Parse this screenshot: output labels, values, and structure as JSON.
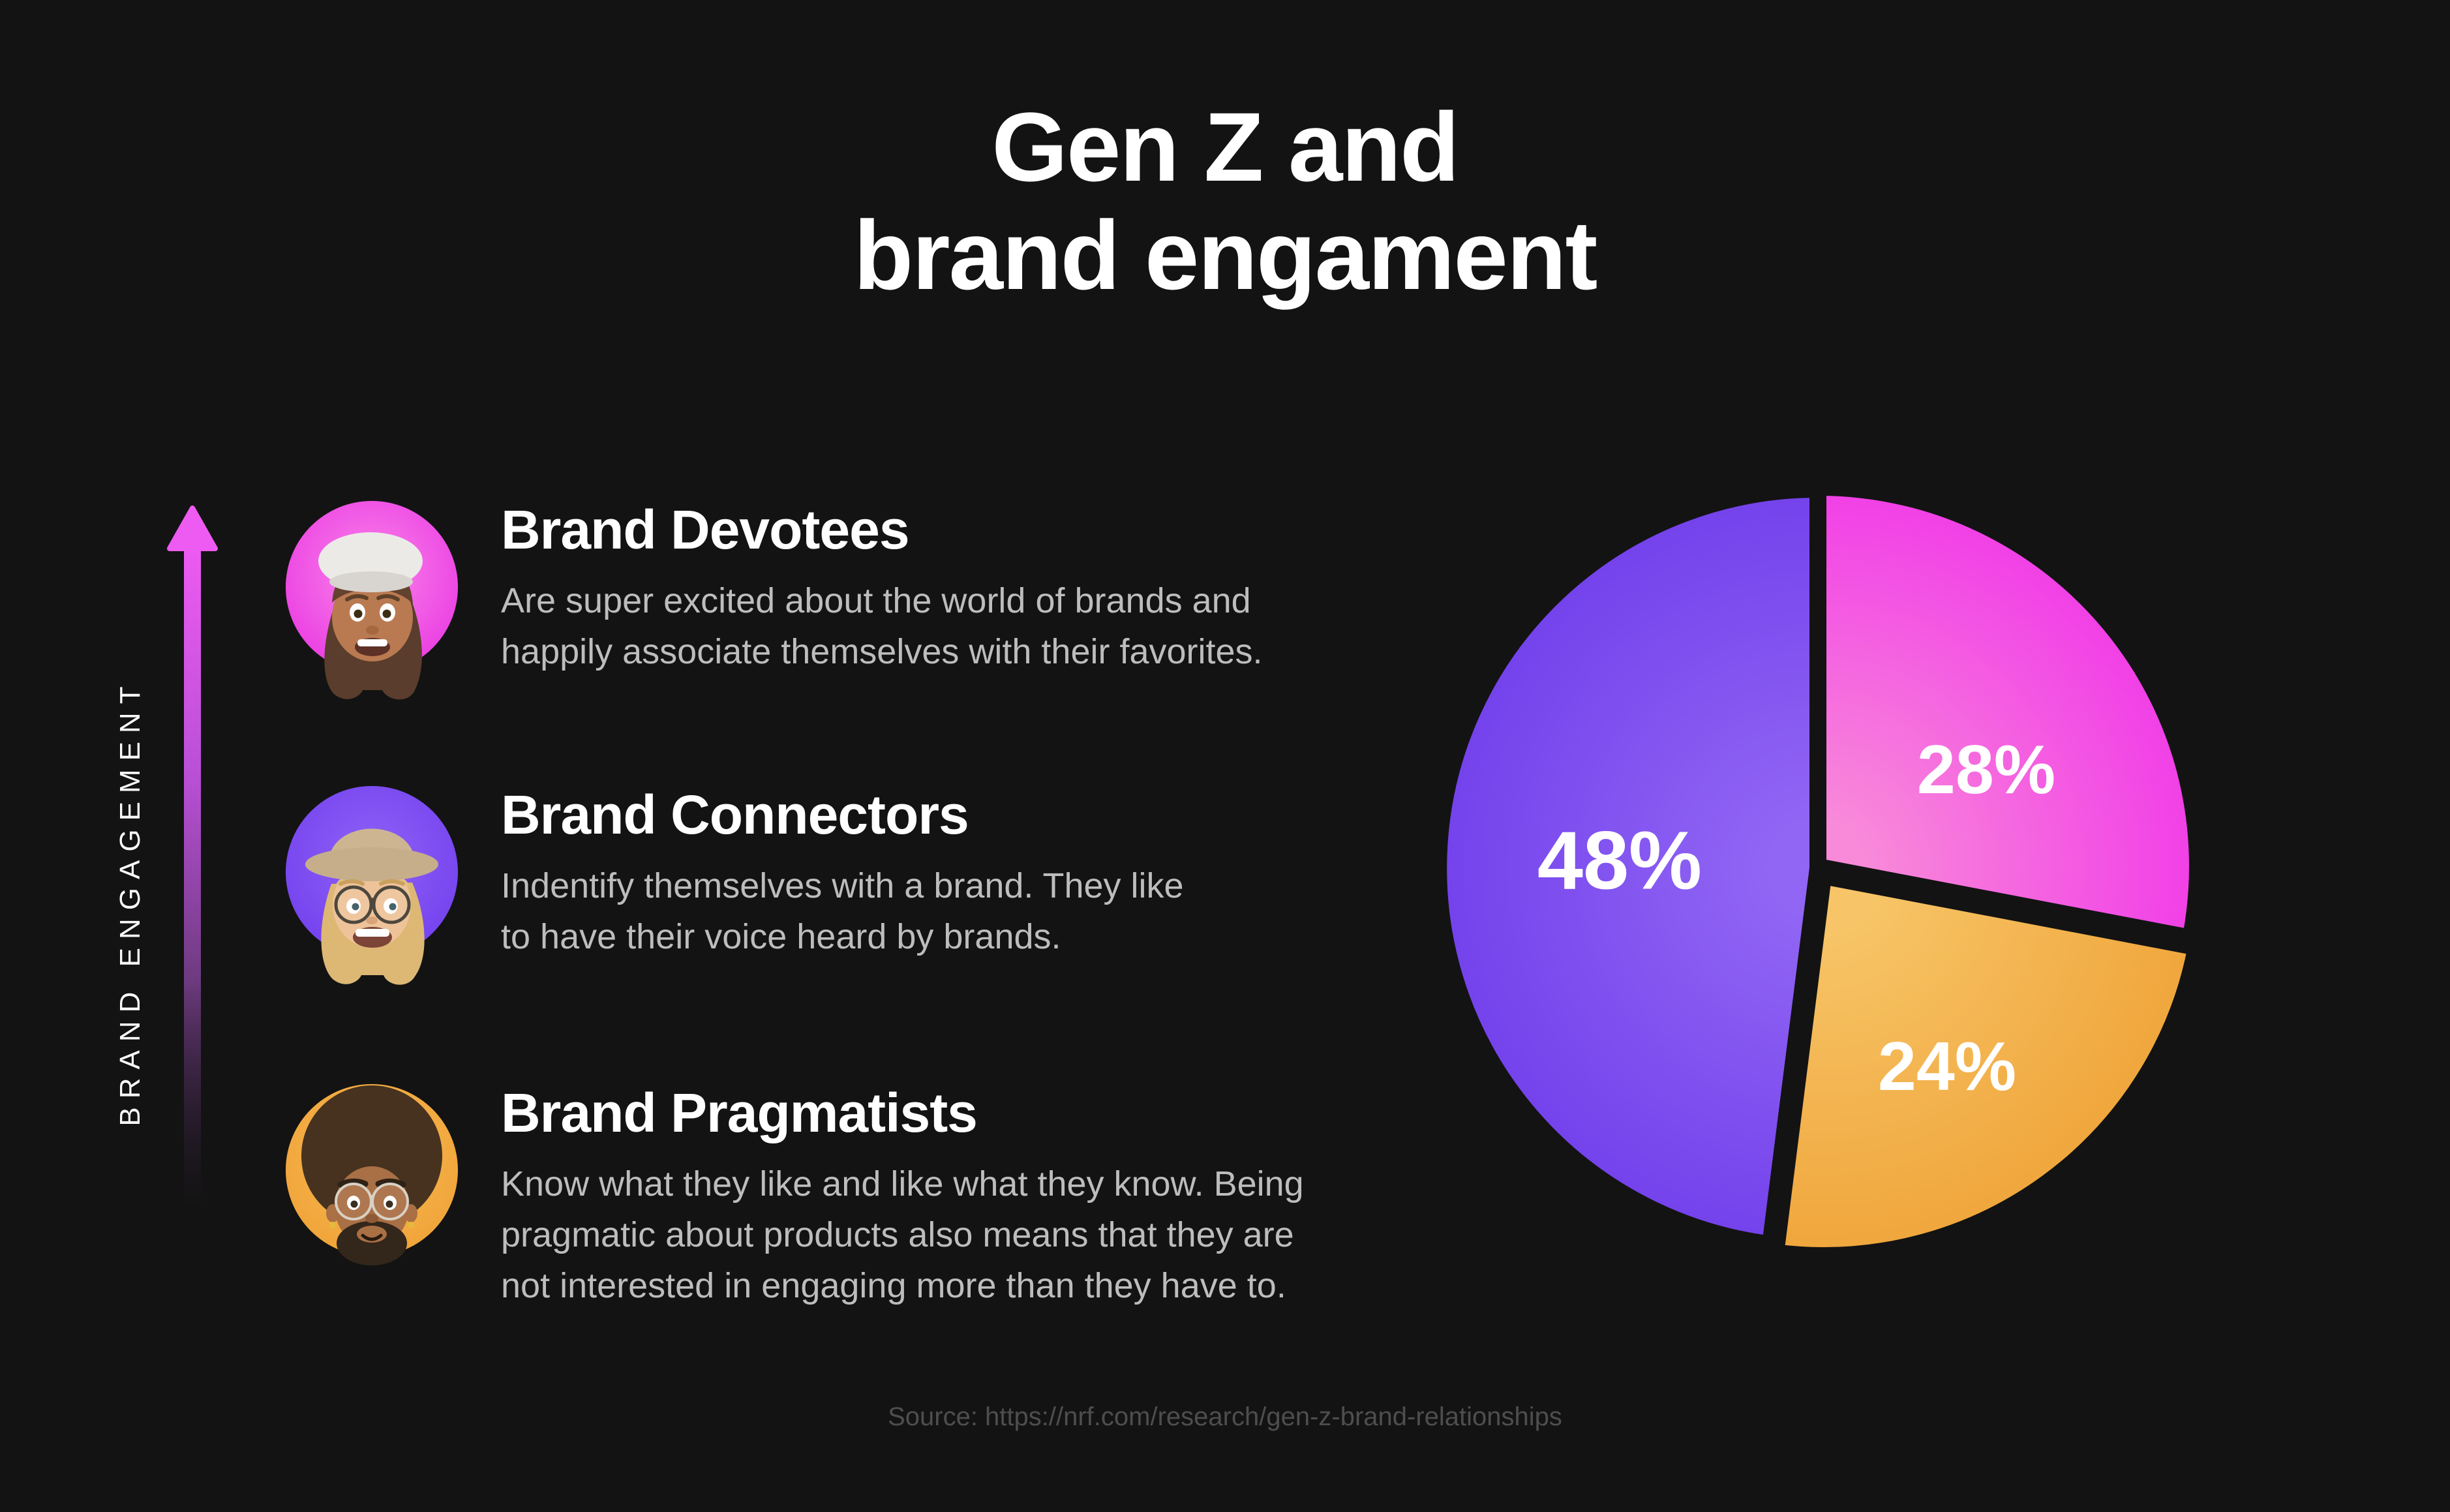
{
  "title": {
    "lines": [
      "Gen Z and",
      "brand engament"
    ]
  },
  "axis": {
    "label": "BRAND ENGAGEMENT"
  },
  "personas": [
    {
      "name": "Brand Devotees",
      "circle_color": "#ea3ce2",
      "avatar": "woman-beret-memoji",
      "description_lines": [
        "Are super excited about the world of brands and",
        "happily associate themselves with their favorites."
      ]
    },
    {
      "name": "Brand Connectors",
      "circle_color": "#7441ee",
      "avatar": "woman-ranger-hat-memoji",
      "description_lines": [
        "Indentify themselves with a brand. They like",
        "to have their voice heard by brands."
      ]
    },
    {
      "name": "Brand Pragmatists",
      "circle_color": "#f0a337",
      "avatar": "man-afro-glasses-memoji",
      "description_lines": [
        "Know what they like and like what they know. Being",
        "pragmatic about products also means that they are",
        "not interested in engaging more than they have to."
      ]
    }
  ],
  "chart_data": {
    "type": "pie",
    "start_angle_deg": 0,
    "direction": "clockwise",
    "title": "",
    "legend": "none",
    "segments": [
      {
        "label": "28%",
        "value": 28,
        "color_inner": "#f88ad9",
        "color_outer": "#f13fe7"
      },
      {
        "label": "24%",
        "value": 24,
        "color_inner": "#f7c568",
        "color_outer": "#f0a63c"
      },
      {
        "label": "48%",
        "value": 48,
        "color_inner": "#9166f4",
        "color_outer": "#7442ec"
      }
    ]
  },
  "colors": {
    "background": "#131313",
    "title_text": "#ffffff",
    "body_text": "#bdbdbd",
    "source_text": "#4e4e4e",
    "arrow_top": "#ee5bf2"
  },
  "source": "Source: https://nrf.com/research/gen-z-brand-relationships"
}
